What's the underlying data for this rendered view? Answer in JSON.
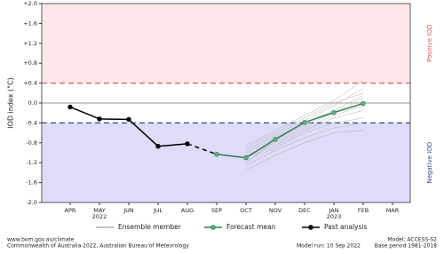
{
  "chart_data": {
    "type": "line",
    "y_label": "IOD index (°C)",
    "categories": [
      "APR",
      "MAY",
      "JUN",
      "JUL",
      "AUG",
      "SEP",
      "OCT",
      "NOV",
      "DEC",
      "JAN",
      "FEB",
      "MAR"
    ],
    "x_sublabels": [
      null,
      "2022",
      null,
      null,
      null,
      null,
      null,
      null,
      null,
      "2023",
      null,
      null
    ],
    "ylim": [
      -2.0,
      2.0
    ],
    "yticks": [
      {
        "value": 2.0,
        "label": "+2.0"
      },
      {
        "value": 1.6,
        "label": "+1.6"
      },
      {
        "value": 1.2,
        "label": "+1.2"
      },
      {
        "value": 0.8,
        "label": "+0.8"
      },
      {
        "value": 0.4,
        "label": "+0.4"
      },
      {
        "value": 0.0,
        "label": "0.0"
      },
      {
        "value": -0.4,
        "label": "-0.4"
      },
      {
        "value": -0.8,
        "label": "-0.8"
      },
      {
        "value": -1.2,
        "label": "-1.2"
      },
      {
        "value": -1.6,
        "label": "-1.6"
      },
      {
        "value": -2.0,
        "label": "-2.0"
      }
    ],
    "thresholds": [
      {
        "value": 0.4,
        "color": "#e05a5a",
        "fill": "#fde6e8",
        "label": "Positive IOD"
      },
      {
        "value": -0.4,
        "color": "#334488",
        "fill": "#dedcf8",
        "label": "Negative IOD"
      }
    ],
    "ensemble": {
      "name": "Ensemble member",
      "color": "#b0b0b0",
      "members": [
        [
          null,
          null,
          null,
          null,
          null,
          null,
          -0.85,
          -0.55,
          -0.25,
          0.05,
          0.45,
          null
        ],
        [
          null,
          null,
          null,
          null,
          null,
          null,
          -0.95,
          -0.65,
          -0.35,
          -0.05,
          0.3,
          null
        ],
        [
          null,
          null,
          null,
          null,
          null,
          null,
          -1.0,
          -0.7,
          -0.4,
          -0.15,
          0.15,
          null
        ],
        [
          null,
          null,
          null,
          null,
          null,
          null,
          -1.05,
          -0.8,
          -0.5,
          -0.25,
          -0.05,
          null
        ],
        [
          null,
          null,
          null,
          null,
          null,
          null,
          -1.1,
          -0.85,
          -0.55,
          -0.3,
          -0.15,
          null
        ],
        [
          null,
          null,
          null,
          null,
          null,
          null,
          -1.15,
          -0.9,
          -0.6,
          -0.4,
          -0.3,
          null
        ],
        [
          null,
          null,
          null,
          null,
          null,
          null,
          -1.25,
          -0.95,
          -0.7,
          -0.5,
          -0.4,
          null
        ],
        [
          null,
          null,
          null,
          null,
          null,
          null,
          -1.35,
          -1.05,
          -0.8,
          -0.6,
          -0.55,
          null
        ],
        [
          null,
          null,
          null,
          null,
          null,
          null,
          -0.9,
          -0.6,
          -0.3,
          0.0,
          0.2,
          null
        ],
        [
          null,
          null,
          null,
          null,
          null,
          null,
          -1.2,
          -0.75,
          -0.45,
          -0.2,
          0.1,
          null
        ]
      ]
    },
    "series": [
      {
        "name": "Forecast mean",
        "color": "#2e7d4f",
        "marker_fill": "#5cb88a",
        "values": [
          null,
          null,
          null,
          null,
          null,
          -1.03,
          -1.1,
          -0.73,
          -0.39,
          -0.19,
          -0.01,
          null
        ]
      },
      {
        "name": "Past analysis",
        "color": "#000000",
        "marker_fill": "#000000",
        "values": [
          -0.08,
          -0.32,
          -0.33,
          -0.87,
          -0.82,
          null,
          null,
          null,
          null,
          null,
          null,
          null
        ]
      }
    ],
    "footer": {
      "url": "www.bom.gov.au/climate",
      "copyright": "Commonwealth of Australia 2022, Australian Bureau of Meteorology",
      "model_run": "Model run: 10 Sep 2022",
      "model": "Model: ACCESS-S2",
      "base_period": "Base period 1981-2018"
    }
  }
}
